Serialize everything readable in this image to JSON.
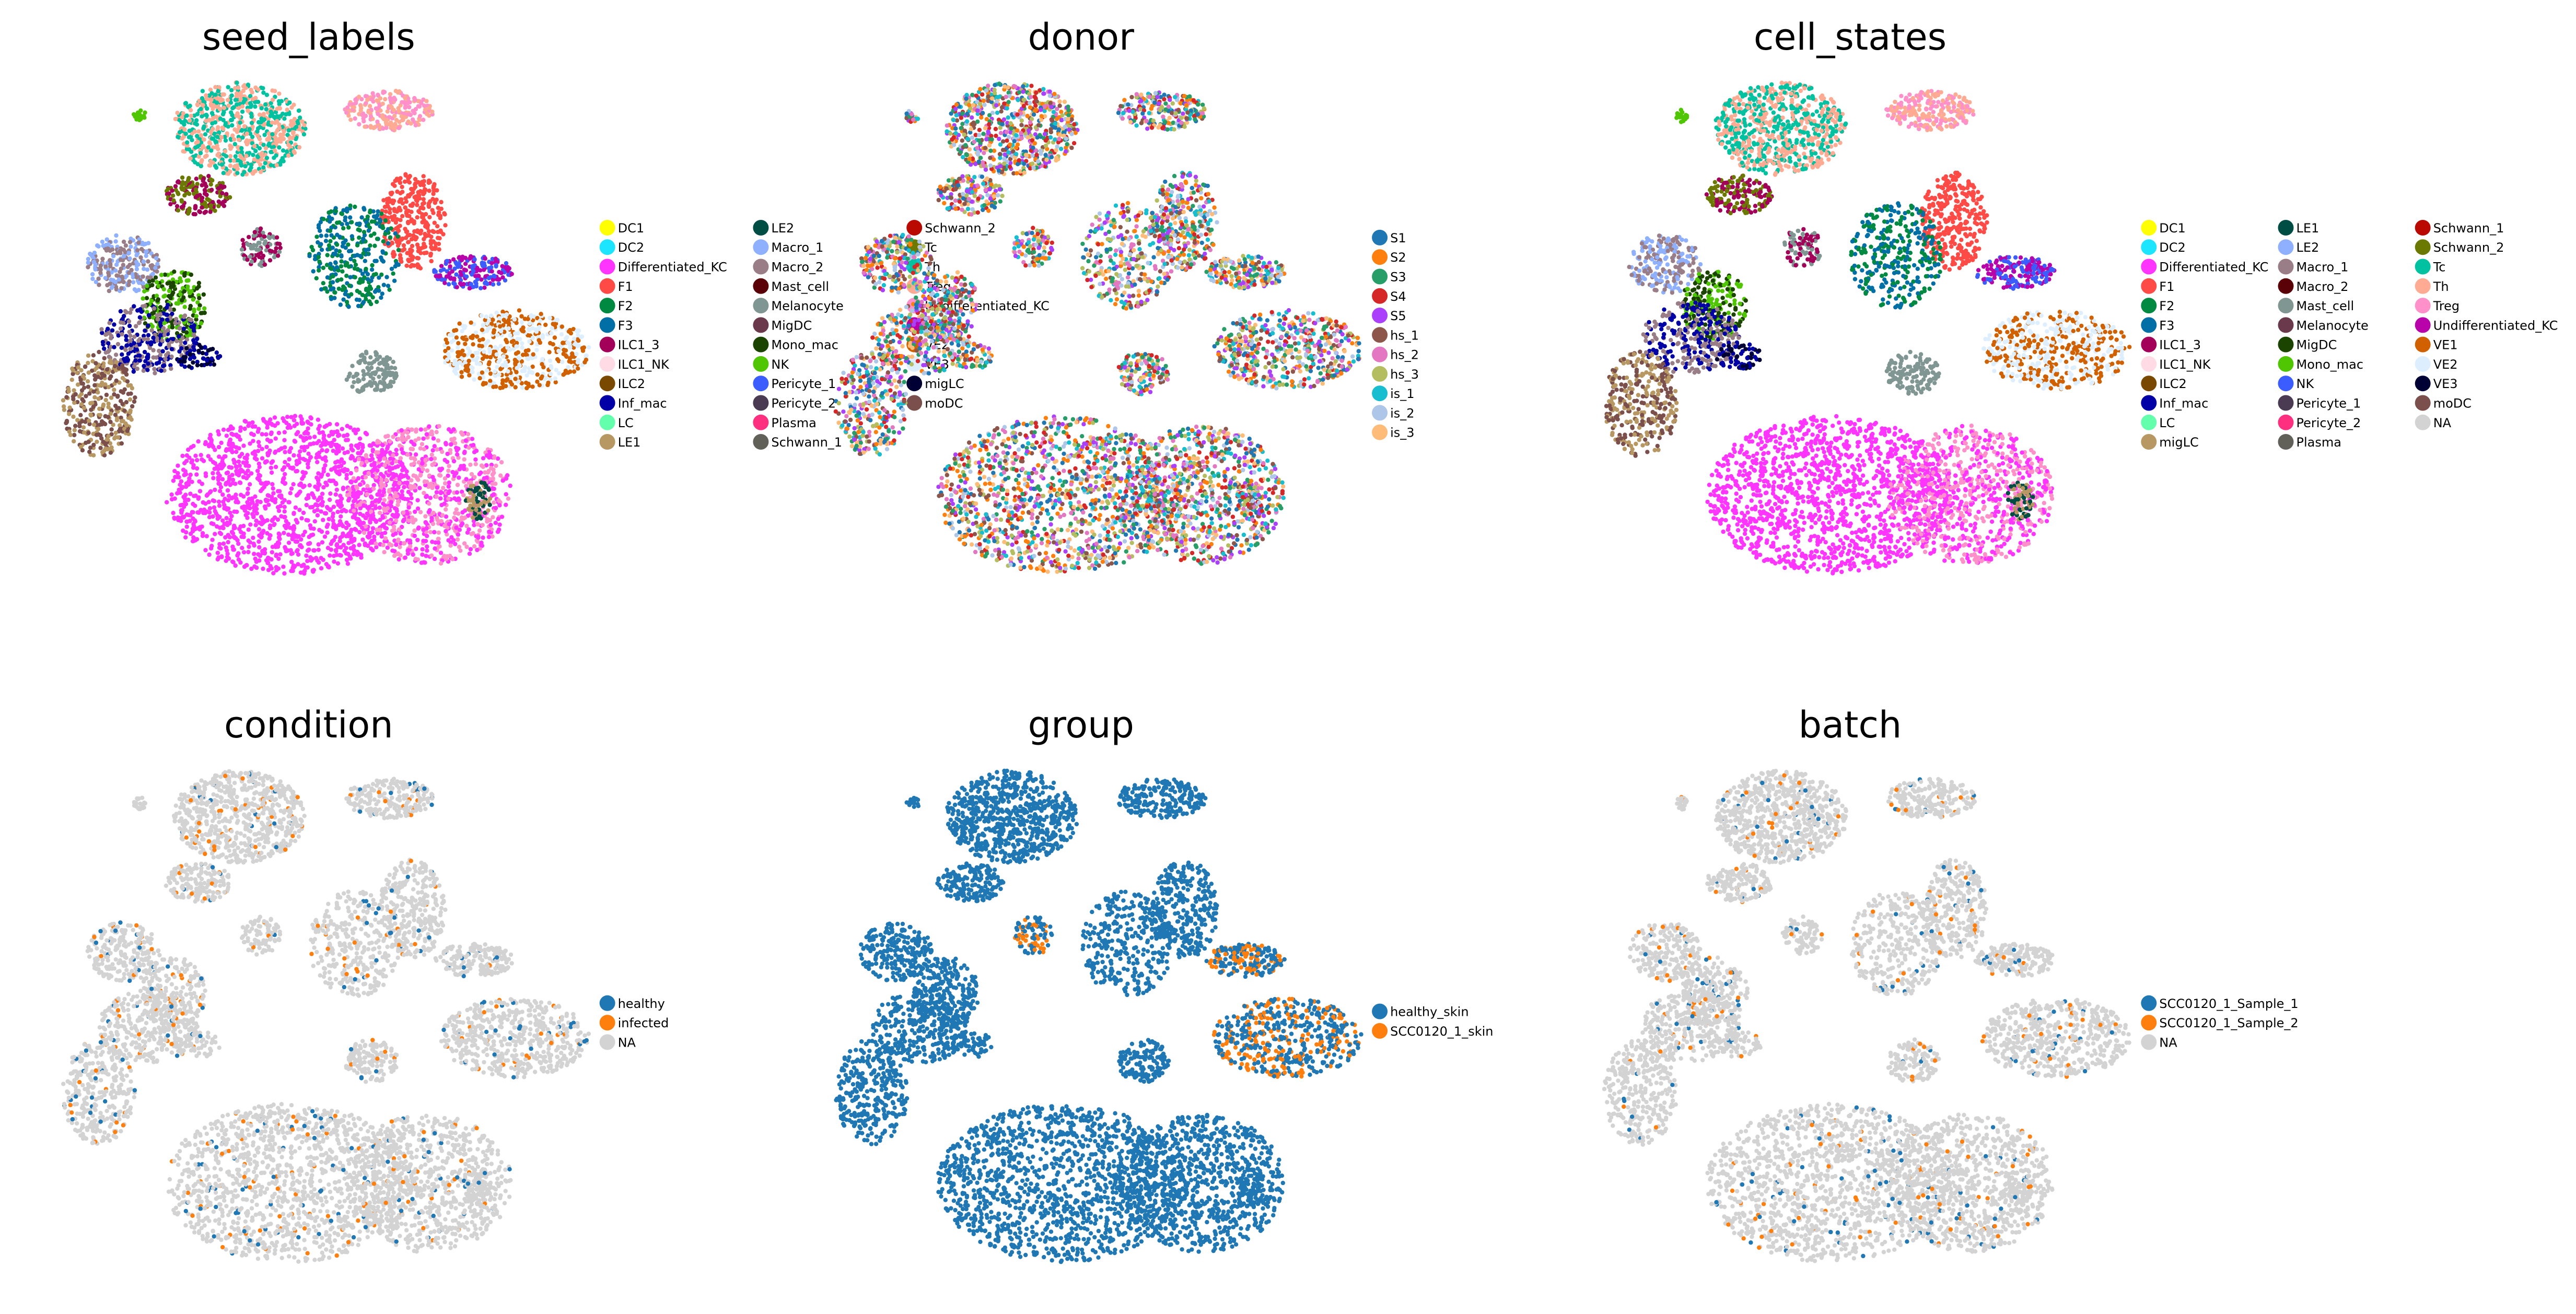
{
  "colors": {
    "na": "#d3d3d3"
  },
  "chart_data": [
    {
      "type": "scatter",
      "title": "seed_labels",
      "legend_placement": "right",
      "legend_columns": 3,
      "categories": [
        {
          "name": "DC1",
          "color": "#ffff00"
        },
        {
          "name": "DC2",
          "color": "#1ce6ff"
        },
        {
          "name": "Differentiated_KC",
          "color": "#ff34ff"
        },
        {
          "name": "F1",
          "color": "#ff4a46"
        },
        {
          "name": "F2",
          "color": "#008941"
        },
        {
          "name": "F3",
          "color": "#006fa6"
        },
        {
          "name": "ILC1_3",
          "color": "#a30059"
        },
        {
          "name": "ILC1_NK",
          "color": "#ffdbe5"
        },
        {
          "name": "ILC2",
          "color": "#7a4900"
        },
        {
          "name": "Inf_mac",
          "color": "#0000a6"
        },
        {
          "name": "LC",
          "color": "#63ffac"
        },
        {
          "name": "LE1",
          "color": "#b79762"
        },
        {
          "name": "LE2",
          "color": "#004d43"
        },
        {
          "name": "Macro_1",
          "color": "#8fb0ff"
        },
        {
          "name": "Macro_2",
          "color": "#997d87"
        },
        {
          "name": "Mast_cell",
          "color": "#5a0007"
        },
        {
          "name": "Melanocyte",
          "color": "#809693"
        },
        {
          "name": "MigDC",
          "color": "#6a3a4c"
        },
        {
          "name": "Mono_mac",
          "color": "#1b4400"
        },
        {
          "name": "NK",
          "color": "#4fc601"
        },
        {
          "name": "Pericyte_1",
          "color": "#3b5dff"
        },
        {
          "name": "Pericyte_2",
          "color": "#4a3b53"
        },
        {
          "name": "Plasma",
          "color": "#ff2f80"
        },
        {
          "name": "Schwann_1",
          "color": "#61615a"
        },
        {
          "name": "Schwann_2",
          "color": "#ba0900"
        },
        {
          "name": "Tc",
          "color": "#6b7900"
        },
        {
          "name": "Th",
          "color": "#00c2a0"
        },
        {
          "name": "Treg",
          "color": "#ffaa92"
        },
        {
          "name": "Undifferentiated_KC",
          "color": "#ff90c9"
        },
        {
          "name": "VE1",
          "color": "#b903aa"
        },
        {
          "name": "VE2",
          "color": "#d16100"
        },
        {
          "name": "VE3",
          "color": "#ddefff"
        },
        {
          "name": "migLC",
          "color": "#000035"
        },
        {
          "name": "moDC",
          "color": "#7b4f4b"
        }
      ]
    },
    {
      "type": "scatter",
      "title": "donor",
      "legend_placement": "right",
      "legend_columns": 1,
      "categories": [
        {
          "name": "S1",
          "color": "#1f77b4"
        },
        {
          "name": "S2",
          "color": "#ff7f0e"
        },
        {
          "name": "S3",
          "color": "#279e68"
        },
        {
          "name": "S4",
          "color": "#d62728"
        },
        {
          "name": "S5",
          "color": "#aa40fc"
        },
        {
          "name": "hs_1",
          "color": "#8c564b"
        },
        {
          "name": "hs_2",
          "color": "#e377c2"
        },
        {
          "name": "hs_3",
          "color": "#b5bd61"
        },
        {
          "name": "is_1",
          "color": "#17becf"
        },
        {
          "name": "is_2",
          "color": "#aec7e8"
        },
        {
          "name": "is_3",
          "color": "#ffbb78"
        }
      ]
    },
    {
      "type": "scatter",
      "title": "cell_states",
      "legend_placement": "right",
      "legend_columns": 3,
      "categories": [
        {
          "name": "DC1",
          "color": "#ffff00"
        },
        {
          "name": "DC2",
          "color": "#1ce6ff"
        },
        {
          "name": "Differentiated_KC",
          "color": "#ff34ff"
        },
        {
          "name": "F1",
          "color": "#ff4a46"
        },
        {
          "name": "F2",
          "color": "#008941"
        },
        {
          "name": "F3",
          "color": "#006fa6"
        },
        {
          "name": "ILC1_3",
          "color": "#a30059"
        },
        {
          "name": "ILC1_NK",
          "color": "#ffdbe5"
        },
        {
          "name": "ILC2",
          "color": "#7a4900"
        },
        {
          "name": "Inf_mac",
          "color": "#0000a6"
        },
        {
          "name": "LC",
          "color": "#63ffac"
        },
        {
          "name": "migLC",
          "color": "#b79762"
        },
        {
          "name": "LE1",
          "color": "#004d43"
        },
        {
          "name": "LE2",
          "color": "#8fb0ff"
        },
        {
          "name": "Macro_1",
          "color": "#997d87"
        },
        {
          "name": "Macro_2",
          "color": "#5a0007"
        },
        {
          "name": "Mast_cell",
          "color": "#809693"
        },
        {
          "name": "Melanocyte",
          "color": "#6a3a4c"
        },
        {
          "name": "MigDC",
          "color": "#1b4400"
        },
        {
          "name": "Mono_mac",
          "color": "#4fc601"
        },
        {
          "name": "NK",
          "color": "#3b5dff"
        },
        {
          "name": "Pericyte_1",
          "color": "#4a3b53"
        },
        {
          "name": "Pericyte_2",
          "color": "#ff2f80"
        },
        {
          "name": "Plasma",
          "color": "#61615a"
        },
        {
          "name": "Schwann_1",
          "color": "#ba0900"
        },
        {
          "name": "Schwann_2",
          "color": "#6b7900"
        },
        {
          "name": "Tc",
          "color": "#00c2a0"
        },
        {
          "name": "Th",
          "color": "#ffaa92"
        },
        {
          "name": "Treg",
          "color": "#ff90c9"
        },
        {
          "name": "Undifferentiated_KC",
          "color": "#b903aa"
        },
        {
          "name": "VE1",
          "color": "#d16100"
        },
        {
          "name": "VE2",
          "color": "#ddefff"
        },
        {
          "name": "VE3",
          "color": "#000035"
        },
        {
          "name": "moDC",
          "color": "#7b4f4b"
        },
        {
          "name": "NA",
          "color": "#d3d3d3"
        }
      ]
    },
    {
      "type": "scatter",
      "title": "condition",
      "legend_placement": "right",
      "legend_columns": 1,
      "categories": [
        {
          "name": "healthy",
          "color": "#1f77b4"
        },
        {
          "name": "infected",
          "color": "#ff7f0e"
        },
        {
          "name": "NA",
          "color": "#d3d3d3"
        }
      ]
    },
    {
      "type": "scatter",
      "title": "group",
      "legend_placement": "right",
      "legend_columns": 1,
      "categories": [
        {
          "name": "healthy_skin",
          "color": "#1f77b4"
        },
        {
          "name": "SCC0120_1_skin",
          "color": "#ff7f0e"
        }
      ]
    },
    {
      "type": "scatter",
      "title": "batch",
      "legend_placement": "right",
      "legend_columns": 1,
      "categories": [
        {
          "name": "SCC0120_1_Sample_1",
          "color": "#1f77b4"
        },
        {
          "name": "SCC0120_1_Sample_2",
          "color": "#ff7f0e"
        },
        {
          "name": "NA",
          "color": "#d3d3d3"
        }
      ]
    }
  ]
}
